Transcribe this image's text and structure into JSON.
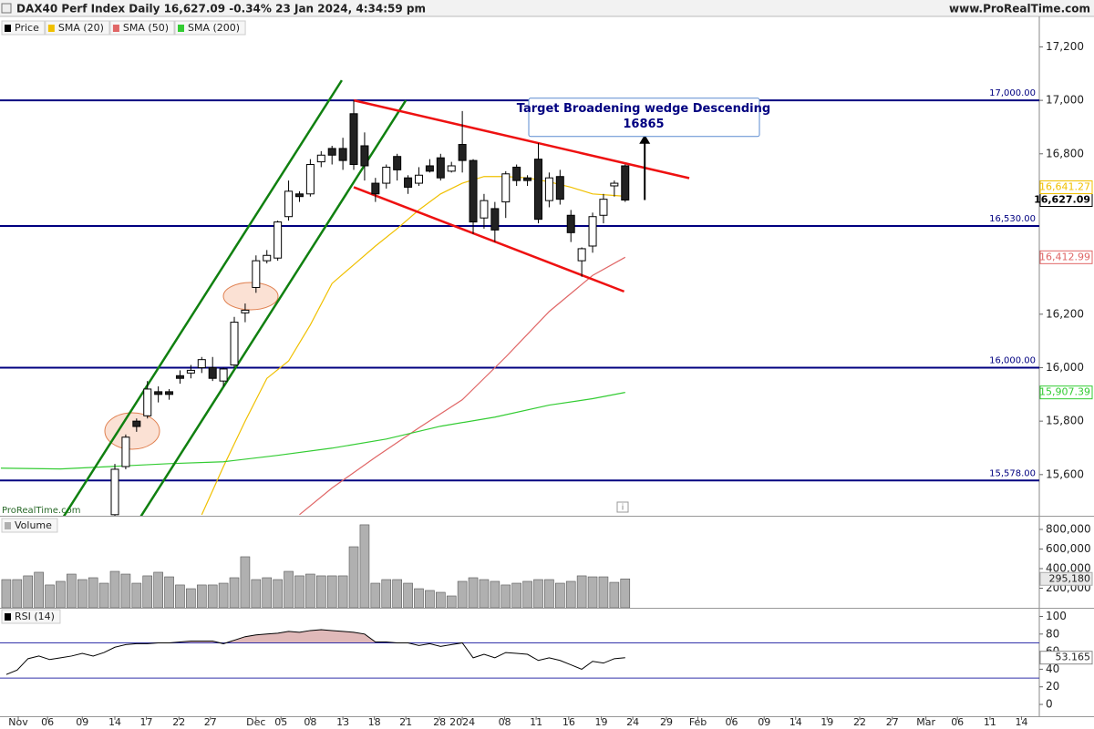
{
  "header": {
    "title": "DAX40 Perf Index Daily 16,627.09 -0.34% 23 Jan 2024, 4:34:59 pm",
    "site": "www.ProRealTime.com",
    "watermark": "ProRealTime.com"
  },
  "chart_data": [
    {
      "type": "candlestick",
      "name": "Price",
      "color": "#000000",
      "xlim": [
        -10.58,
        85.14
      ],
      "ylim": [
        15446,
        17314
      ],
      "xticks": [
        {
          "value": -8.9,
          "label": "Nov"
        },
        {
          "value": -6.2,
          "label": "06"
        },
        {
          "value": -3.0,
          "label": "09"
        },
        {
          "value": 0,
          "label": "14"
        },
        {
          "value": 2.9,
          "label": "17"
        },
        {
          "value": 5.9,
          "label": "22"
        },
        {
          "value": 8.8,
          "label": "27"
        },
        {
          "value": 13,
          "label": "Dec"
        },
        {
          "value": 15.3,
          "label": "05"
        },
        {
          "value": 18.0,
          "label": "08"
        },
        {
          "value": 21.0,
          "label": "13"
        },
        {
          "value": 23.9,
          "label": "18"
        },
        {
          "value": 26.8,
          "label": "21"
        },
        {
          "value": 29.9,
          "label": "28"
        },
        {
          "value": 32,
          "label": "2024"
        },
        {
          "value": 35.9,
          "label": "08"
        },
        {
          "value": 38.8,
          "label": "11"
        },
        {
          "value": 41.8,
          "label": "16"
        },
        {
          "value": 44.8,
          "label": "19"
        },
        {
          "value": 47.7,
          "label": "24"
        },
        {
          "value": 50.8,
          "label": "29"
        },
        {
          "value": 53.7,
          "label": "Feb"
        },
        {
          "value": 56.8,
          "label": "06"
        },
        {
          "value": 59.8,
          "label": "09"
        },
        {
          "value": 62.7,
          "label": "14"
        },
        {
          "value": 65.6,
          "label": "19"
        },
        {
          "value": 68.6,
          "label": "22"
        },
        {
          "value": 71.6,
          "label": "27"
        },
        {
          "value": 74.7,
          "label": "Mar"
        },
        {
          "value": 77.6,
          "label": "06"
        },
        {
          "value": 80.6,
          "label": "11"
        },
        {
          "value": 83.5,
          "label": "14"
        }
      ],
      "yticks": [
        {
          "value": 15600,
          "label": "15,600"
        },
        {
          "value": 15800,
          "label": "15,800"
        },
        {
          "value": 16000,
          "label": "16,000"
        },
        {
          "value": 16200,
          "label": "16,200"
        },
        {
          "value": 16800,
          "label": "16,800"
        },
        {
          "value": 17000,
          "label": "17,000"
        },
        {
          "value": 17200,
          "label": "17,200"
        }
      ],
      "x": [
        0,
        1,
        2,
        3,
        4,
        5,
        6,
        7,
        8,
        9,
        10,
        11,
        12,
        13,
        14,
        15,
        16,
        17,
        18,
        19,
        20,
        21,
        22,
        23,
        24,
        25,
        26,
        27,
        28,
        29,
        30,
        31,
        32,
        33,
        34,
        35,
        36,
        37,
        38,
        39,
        40,
        41,
        42,
        43,
        44,
        45,
        46,
        47
      ],
      "open": [
        15450,
        15630,
        15800,
        15820,
        15910,
        15910,
        15970,
        15980,
        16000,
        16000,
        15950,
        16010,
        16205,
        16300,
        16400,
        16410,
        16565,
        16650,
        16650,
        16770,
        16820,
        16820,
        16950,
        16830,
        16690,
        16690,
        16790,
        16710,
        16690,
        16755,
        16785,
        16735,
        16835,
        16775,
        16560,
        16595,
        16620,
        16750,
        16710,
        16780,
        16625,
        16715,
        16570,
        16400,
        16455,
        16570,
        16680,
        16755
      ],
      "high": [
        15640,
        15750,
        15810,
        15950,
        15930,
        15920,
        15990,
        16010,
        16040,
        16040,
        16000,
        16190,
        16240,
        16420,
        16440,
        16550,
        16700,
        16660,
        16780,
        16810,
        16830,
        16860,
        17000,
        16880,
        16710,
        16760,
        16800,
        16720,
        16750,
        16780,
        16800,
        16770,
        16960,
        16780,
        16650,
        16620,
        16735,
        16760,
        16720,
        16840,
        16730,
        16740,
        16590,
        16450,
        16580,
        16650,
        16700,
        16760
      ],
      "low": [
        15420,
        15620,
        15760,
        15810,
        15870,
        15880,
        15940,
        15960,
        15980,
        15950,
        15930,
        16000,
        16170,
        16280,
        16390,
        16400,
        16550,
        16620,
        16640,
        16750,
        16760,
        16740,
        16740,
        16700,
        16620,
        16670,
        16700,
        16650,
        16680,
        16730,
        16700,
        16730,
        16730,
        16500,
        16520,
        16470,
        16560,
        16680,
        16680,
        16540,
        16600,
        16610,
        16470,
        16340,
        16430,
        16540,
        16640,
        16620
      ],
      "close": [
        15620,
        15740,
        15780,
        15920,
        15900,
        15900,
        15960,
        15990,
        16030,
        15960,
        15995,
        16170,
        16215,
        16400,
        16420,
        16545,
        16660,
        16640,
        16760,
        16795,
        16795,
        16775,
        16760,
        16755,
        16650,
        16750,
        16740,
        16675,
        16720,
        16735,
        16710,
        16755,
        16775,
        16545,
        16625,
        16515,
        16725,
        16700,
        16700,
        16555,
        16710,
        16630,
        16505,
        16445,
        16565,
        16630,
        16690,
        16627.09
      ],
      "last_label": "16,627.09",
      "overlays": [
        {
          "name": "SMA (20)",
          "color": "#f0c000",
          "last_label": "16,641.27",
          "x": [
            8,
            10,
            12,
            14,
            16,
            18,
            20,
            22,
            24,
            26,
            28,
            30,
            32,
            34,
            36,
            38,
            40,
            42,
            44,
            47
          ],
          "values": [
            15450,
            15630,
            15800,
            15960,
            16025,
            16160,
            16315,
            16385,
            16455,
            16520,
            16590,
            16650,
            16690,
            16715,
            16715,
            16710,
            16695,
            16675,
            16650,
            16641.27
          ]
        },
        {
          "name": "SMA (50)",
          "color": "#e06666",
          "last_label": "16,412.99",
          "x": [
            17,
            20,
            24,
            28,
            32,
            36,
            40,
            44,
            47
          ],
          "values": [
            15450,
            15550,
            15665,
            15775,
            15880,
            16040,
            16210,
            16345,
            16412.99
          ]
        },
        {
          "name": "SMA (200)",
          "color": "#33cc33",
          "last_label": "15,907.39",
          "x": [
            -10.5,
            -5,
            0,
            5,
            10,
            15,
            20,
            25,
            30,
            35,
            40,
            44,
            47
          ],
          "values": [
            15624,
            15621,
            15631,
            15641,
            15648,
            15672,
            15699,
            15733,
            15781,
            15815,
            15860,
            15884,
            15907.39
          ]
        }
      ],
      "hlines": [
        {
          "value": 17000,
          "label": "17,000.00"
        },
        {
          "value": 16530,
          "label": "16,530.00"
        },
        {
          "value": 16000,
          "label": "16,000.00"
        },
        {
          "value": 15578,
          "label": "15,578.00"
        }
      ],
      "hline_color": "#000080",
      "trendlines": [
        {
          "color": "#108010",
          "points": [
            [
              -4.7,
              15444
            ],
            [
              20.9,
              17075
            ]
          ]
        },
        {
          "color": "#108010",
          "points": [
            [
              2.4,
              15444
            ],
            [
              26.8,
              17000
            ]
          ]
        },
        {
          "color": "#ee1111",
          "points": [
            [
              22,
              17000
            ],
            [
              52.9,
              16709
            ]
          ]
        },
        {
          "color": "#ee1111",
          "points": [
            [
              22,
              16675
            ],
            [
              46.9,
              16285
            ]
          ]
        }
      ],
      "annotation": {
        "text": "Target Broadening wedge Descending",
        "value": 16865,
        "x": 48.8
      }
    },
    {
      "type": "bar",
      "name": "Volume",
      "color": "#b0b0b0",
      "ylim": [
        0,
        930000
      ],
      "yticks": [
        {
          "value": 200000,
          "label": "200,000"
        },
        {
          "value": 400000,
          "label": "400,000"
        },
        {
          "value": 600000,
          "label": "600,000"
        },
        {
          "value": 800000,
          "label": "800,000"
        }
      ],
      "x": [
        -10,
        -9,
        -8,
        -7,
        -6,
        -5,
        -4,
        -3,
        -2,
        -1,
        0,
        1,
        2,
        3,
        4,
        5,
        6,
        7,
        8,
        9,
        10,
        11,
        12,
        13,
        14,
        15,
        16,
        17,
        18,
        19,
        20,
        21,
        22,
        23,
        24,
        25,
        26,
        27,
        28,
        29,
        30,
        31,
        32,
        33,
        34,
        35,
        36,
        37,
        38,
        39,
        40,
        41,
        42,
        43,
        44,
        45,
        46,
        47
      ],
      "values": [
        288000,
        288000,
        326000,
        363000,
        233000,
        270000,
        344000,
        288000,
        307000,
        251000,
        372000,
        344000,
        251000,
        326000,
        363000,
        316000,
        233000,
        195000,
        233000,
        233000,
        251000,
        307000,
        521000,
        288000,
        307000,
        288000,
        372000,
        326000,
        344000,
        326000,
        326000,
        326000,
        623000,
        847000,
        251000,
        288000,
        288000,
        251000,
        195000,
        177000,
        158000,
        121000,
        270000,
        307000,
        288000,
        270000,
        233000,
        251000,
        270000,
        288000,
        288000,
        251000,
        270000,
        326000,
        316000,
        316000,
        260000,
        295180
      ],
      "last_label": "295,180"
    },
    {
      "type": "line",
      "name": "RSI (14)",
      "color": "#000000",
      "ylim": [
        -12.4,
        108.8
      ],
      "yticks": [
        0,
        20,
        40,
        60,
        80,
        100
      ],
      "levels": [
        70,
        30
      ],
      "level_color": "#3333aa",
      "fill_color": "#d8a8a8",
      "x": [
        -10,
        -9,
        -8,
        -7,
        -6,
        -5,
        -4,
        -3,
        -2,
        -1,
        0,
        1,
        2,
        3,
        4,
        5,
        6,
        7,
        8,
        9,
        10,
        11,
        12,
        13,
        14,
        15,
        16,
        17,
        18,
        19,
        20,
        21,
        22,
        23,
        24,
        25,
        26,
        27,
        28,
        29,
        30,
        31,
        32,
        33,
        34,
        35,
        36,
        37,
        38,
        39,
        40,
        41,
        42,
        43,
        44,
        45,
        46,
        47
      ],
      "values": [
        34,
        39,
        52,
        55,
        51,
        53,
        55,
        58,
        55,
        59,
        65,
        68,
        69,
        69,
        70,
        70,
        71,
        72,
        72,
        72,
        69,
        73,
        77,
        79,
        80,
        81,
        83,
        82,
        84,
        85,
        84,
        83,
        82,
        80,
        71,
        71,
        70,
        70,
        67,
        69,
        66,
        68,
        70,
        53,
        57,
        53,
        59,
        58,
        57,
        50,
        53,
        50,
        45,
        40,
        49,
        47,
        52,
        53.165
      ],
      "last_label": "53.165"
    }
  ]
}
